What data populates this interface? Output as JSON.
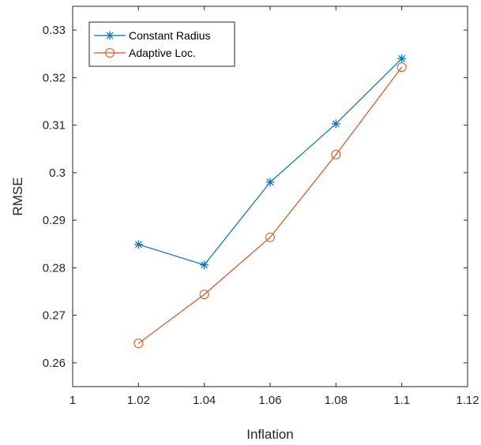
{
  "chart_data": {
    "type": "line",
    "xlabel": "Inflation",
    "ylabel": "RMSE",
    "xlim": [
      1,
      1.12
    ],
    "ylim": [
      0.255,
      0.335
    ],
    "xticks": [
      "1",
      "1.02",
      "1.04",
      "1.06",
      "1.08",
      "1.1",
      "1.12"
    ],
    "yticks": [
      "0.26",
      "0.27",
      "0.28",
      "0.29",
      "0.3",
      "0.31",
      "0.32",
      "0.33"
    ],
    "grid": false,
    "legend_position": "top-left",
    "x": [
      1.02,
      1.04,
      1.06,
      1.08,
      1.1
    ],
    "series": [
      {
        "name": "Constant Radius",
        "marker": "asterisk",
        "color": "#0072BD",
        "values": [
          0.2849,
          0.2806,
          0.298,
          0.3103,
          0.324
        ]
      },
      {
        "name": "Adaptive Loc.",
        "marker": "circle",
        "color": "#D95319",
        "values": [
          0.2641,
          0.2744,
          0.2864,
          0.3038,
          0.3222
        ]
      }
    ]
  }
}
